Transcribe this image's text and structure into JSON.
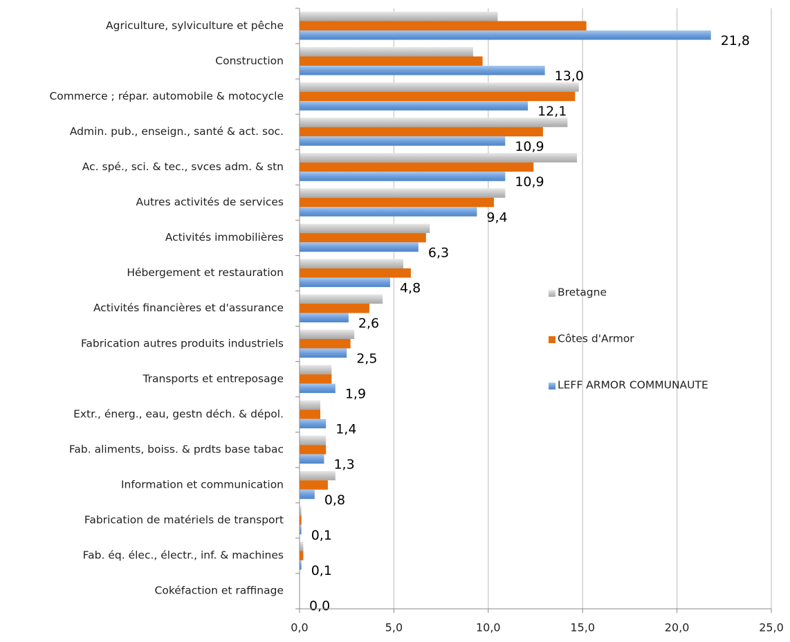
{
  "chart_data": {
    "type": "hbar",
    "categories": [
      "Agriculture, sylviculture et pêche",
      "Construction",
      "Commerce ; répar. automobile & motocycle",
      "Admin. pub., enseign., santé & act. soc.",
      "Ac. spé., sci. & tec., svces adm. & stn",
      "Autres activités de services",
      "Activités immobilières",
      "Hébergement et restauration",
      "Activités financières et d'assurance",
      "Fabrication autres produits industriels",
      "Transports et entreposage",
      "Extr., énerg., eau, gestn déch. & dépol.",
      "Fab. aliments, boiss. & prdts base tabac",
      "Information et communication",
      "Fabrication de matériels de transport",
      "Fab. éq. élec., électr., inf. & machines",
      "Cokéfaction et raffinage"
    ],
    "series": [
      {
        "name": "Bretagne",
        "color": "#c6c6c6",
        "values": [
          10.5,
          9.2,
          14.8,
          14.2,
          14.7,
          10.9,
          6.9,
          5.5,
          4.4,
          2.9,
          1.7,
          1.1,
          1.4,
          1.9,
          0.1,
          0.2,
          0
        ]
      },
      {
        "name": "Côtes d'Armor",
        "color": "#e46c0a",
        "values": [
          15.2,
          9.7,
          14.6,
          12.9,
          12.4,
          10.3,
          6.7,
          5.9,
          3.7,
          2.7,
          1.7,
          1.1,
          1.4,
          1.5,
          0.1,
          0.2,
          0
        ]
      },
      {
        "name": "LEFF ARMOR COMMUNAUTE",
        "color": "#6fa0dc",
        "values": [
          21.8,
          13.0,
          12.1,
          10.9,
          10.9,
          9.4,
          6.3,
          4.8,
          2.6,
          2.5,
          1.9,
          1.4,
          1.3,
          0.8,
          0.1,
          0.1,
          0.0
        ],
        "value_labels": [
          "21,8",
          "13,0",
          "12,1",
          "10,9",
          "10,9",
          "9,4",
          "6,3",
          "4,8",
          "2,6",
          "2,5",
          "1,9",
          "1,4",
          "1,3",
          "0,8",
          "0,1",
          "0,1",
          "0,0"
        ]
      }
    ],
    "xlim": [
      0,
      25
    ],
    "xticks": [
      {
        "value": 0,
        "label": "0,0"
      },
      {
        "value": 5,
        "label": "5,0"
      },
      {
        "value": 10,
        "label": "10,0"
      },
      {
        "value": 15,
        "label": "15,0"
      },
      {
        "value": 20,
        "label": "20,0"
      },
      {
        "value": 25,
        "label": "25,0"
      }
    ],
    "grid": true
  }
}
